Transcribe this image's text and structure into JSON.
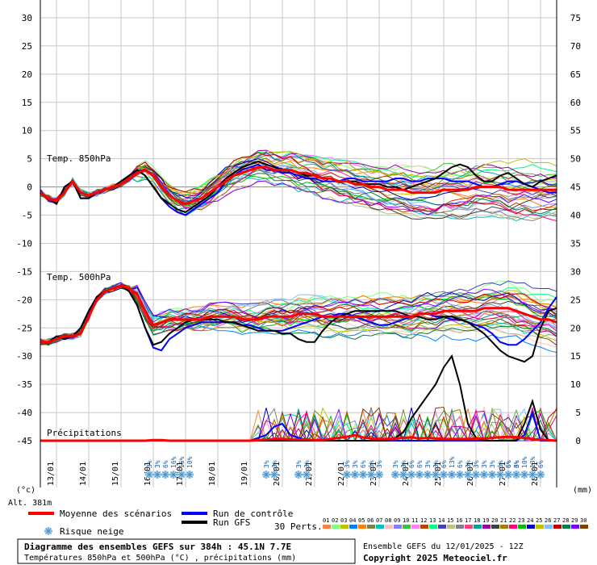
{
  "chart_data": {
    "type": "line",
    "title": "Diagramme des ensembles GEFS sur 384h : 45.1N 7.7E",
    "subtitle": "Températures 850hPa et 500hPa (°C) , précipitations (mm)",
    "y_left_ticks": [
      30,
      25,
      20,
      15,
      10,
      5,
      0,
      -5,
      -10,
      -15,
      -20,
      -25,
      -30,
      -35,
      -40,
      -45
    ],
    "y_right_ticks": [
      75,
      70,
      65,
      60,
      55,
      50,
      45,
      40,
      35,
      30,
      25,
      20,
      15,
      10,
      5,
      0
    ],
    "ylim_left": [
      -45,
      30
    ],
    "ylim_right": [
      0,
      75
    ],
    "xlabel_ticks": [
      "13/01",
      "14/01",
      "15/01",
      "16/01",
      "17/01",
      "18/01",
      "19/01",
      "20/01",
      "21/01",
      "22/01",
      "23/01",
      "24/01",
      "25/01",
      "26/01",
      "27/01",
      "28/01"
    ],
    "unit_left": "(°c)",
    "unit_right": "(mm)",
    "altitude_label": "Alt. 381m",
    "section_labels": {
      "t850": "Temp. 850hPa",
      "t500": "Temp. 500hPa",
      "precip": "Précipitations"
    },
    "x_step_hours": 6,
    "x_start": "12/01 12Z",
    "series": [
      {
        "name": "Moyenne des scénarios",
        "color": "#ff0000",
        "t850": [
          -1,
          -2,
          -2.5,
          -1,
          1,
          -1,
          -1.5,
          -1,
          -0.5,
          0,
          0.5,
          1.5,
          2.5,
          3,
          2,
          0,
          -1.5,
          -2.5,
          -3,
          -2.5,
          -2,
          -1,
          0,
          1,
          2,
          2.5,
          3,
          3.5,
          3.5,
          3,
          3,
          3,
          2.5,
          2.5,
          2,
          1.5,
          1.5,
          1,
          1,
          0.5,
          0.5,
          0,
          0,
          -0.5,
          -0.5,
          -0.5,
          -1,
          -1,
          -1,
          -1,
          -0.5,
          -0.5,
          -0.5,
          -0.5,
          0,
          0,
          0,
          0,
          -0.5,
          -0.5,
          -0.5,
          -0.5,
          -0.5,
          -0.5,
          -0.5
        ],
        "t500": [
          -27.5,
          -27.5,
          -27,
          -26.5,
          -26.5,
          -26,
          -23,
          -20,
          -18.5,
          -18,
          -17.5,
          -18,
          -19,
          -22,
          -24.5,
          -24,
          -23.5,
          -23.5,
          -23.5,
          -23.5,
          -23.5,
          -23,
          -23,
          -23,
          -23,
          -23.5,
          -23.5,
          -23.5,
          -23,
          -23,
          -23,
          -23,
          -22.5,
          -22.5,
          -22.5,
          -23,
          -23,
          -23,
          -23,
          -23,
          -23,
          -23,
          -23,
          -23,
          -23,
          -23,
          -23,
          -22.5,
          -22.5,
          -22.5,
          -22,
          -22,
          -22,
          -22,
          -22,
          -21.5,
          -21.5,
          -21.5,
          -21.5,
          -22,
          -22.5,
          -23,
          -23.5,
          -23.5,
          -24
        ],
        "precip": [
          0,
          0,
          0,
          0,
          0,
          0,
          0,
          0,
          0,
          0,
          0,
          0,
          0,
          0,
          0.1,
          0.1,
          0,
          0,
          0,
          0,
          0,
          0,
          0,
          0,
          0,
          0,
          0,
          0.1,
          0.2,
          0.3,
          0.3,
          0.2,
          0.2,
          0.2,
          0.1,
          0.1,
          0.3,
          0.5,
          0.7,
          1,
          0.6,
          0.4,
          0.3,
          0.3,
          0.4,
          0.5,
          0.6,
          0.4,
          0.5,
          0.4,
          0.3,
          0.3,
          0.3,
          0.3,
          0.4,
          0.4,
          0.5,
          0.6,
          0.7,
          0.6,
          0.5,
          0.3,
          0.2,
          0.1,
          0
        ]
      },
      {
        "name": "Run de contrôle",
        "color": "#0000ff",
        "t850": [
          -1,
          -2,
          -3,
          0,
          1,
          -2,
          -2,
          -1,
          -0.5,
          0,
          1,
          2,
          3,
          2,
          0,
          -2,
          -3.5,
          -4.5,
          -5,
          -4,
          -3,
          -2,
          -1,
          1,
          2,
          3,
          3.5,
          4,
          3,
          3,
          2.5,
          2.5,
          2,
          1.5,
          1.5,
          1,
          1,
          1,
          1.5,
          1.5,
          1,
          1,
          1,
          1,
          1.5,
          1.5,
          1,
          1,
          1.5,
          1.5,
          1.5,
          1,
          1,
          1,
          0.5,
          0,
          0,
          0.5,
          1,
          1,
          0.5,
          0,
          -0.5,
          -1,
          -1
        ],
        "t500": [
          -27.5,
          -27.5,
          -26.5,
          -27,
          -26.5,
          -25,
          -22,
          -19.5,
          -18.5,
          -18,
          -17.5,
          -18.5,
          -21,
          -25,
          -28.5,
          -29,
          -27,
          -26,
          -25,
          -24.5,
          -24,
          -24,
          -24,
          -24,
          -24,
          -24.5,
          -24.5,
          -25,
          -25.5,
          -25.5,
          -25.5,
          -25,
          -24.5,
          -24,
          -23.5,
          -23,
          -23,
          -22.5,
          -22.5,
          -23,
          -23.5,
          -24,
          -24.5,
          -24.5,
          -24,
          -23.5,
          -23,
          -22.5,
          -22.5,
          -23,
          -23,
          -23.5,
          -23.5,
          -24,
          -24.5,
          -25,
          -26,
          -27.5,
          -28,
          -28,
          -27,
          -25.5,
          -24,
          -21.5,
          -19.5
        ],
        "precip": [
          0,
          0,
          0,
          0,
          0,
          0,
          0,
          0,
          0,
          0,
          0,
          0,
          0,
          0,
          0,
          0,
          0,
          0,
          0,
          0,
          0,
          0,
          0,
          0,
          0,
          0,
          0,
          0.5,
          1,
          2.5,
          3,
          1,
          0.5,
          0.2,
          0,
          0,
          0,
          0,
          0,
          0,
          0,
          0,
          0,
          0,
          0,
          0,
          0,
          0,
          0,
          0,
          0,
          0,
          0,
          0,
          0,
          0,
          0,
          0,
          0,
          0,
          1,
          5,
          0,
          0,
          0
        ]
      },
      {
        "name": "Run GFS",
        "color": "#000000",
        "t850": [
          -1,
          -2,
          -3,
          0,
          1,
          -2,
          -2,
          -1,
          -0.5,
          0,
          1,
          2,
          3,
          2,
          0,
          -2,
          -3,
          -4,
          -4.5,
          -3.5,
          -2.5,
          -1.5,
          0,
          1.5,
          2.5,
          3.5,
          4,
          4.5,
          4,
          3.5,
          3,
          3,
          2.5,
          2,
          2,
          1.5,
          1.5,
          1,
          1,
          1,
          0.5,
          0.5,
          0.5,
          0,
          0,
          -0.5,
          0,
          0.5,
          1,
          1.5,
          2.5,
          3.5,
          4,
          3.5,
          2,
          1,
          1,
          2,
          2.5,
          1.5,
          0.5,
          0,
          1,
          1.5,
          2
        ],
        "t500": [
          -27.5,
          -27.5,
          -26.5,
          -27,
          -26.5,
          -25,
          -22,
          -19.5,
          -18.5,
          -18,
          -17.5,
          -18.5,
          -21,
          -25,
          -28,
          -27.5,
          -26,
          -25,
          -24,
          -23.5,
          -23.5,
          -23.5,
          -23.5,
          -24,
          -24,
          -24.5,
          -25,
          -25.5,
          -25.5,
          -25.5,
          -26,
          -26,
          -27,
          -27.5,
          -27.5,
          -25.5,
          -24,
          -23,
          -22.5,
          -22,
          -22,
          -22,
          -22,
          -22,
          -22,
          -22.5,
          -23,
          -23,
          -23.5,
          -23.5,
          -23,
          -23,
          -23.5,
          -24,
          -25,
          -26,
          -27.5,
          -29,
          -30,
          -30.5,
          -31,
          -30,
          -25,
          -22,
          -21.5
        ],
        "precip": [
          0,
          0,
          0,
          0,
          0,
          0,
          0,
          0,
          0,
          0,
          0,
          0,
          0,
          0,
          0,
          0,
          0,
          0,
          0,
          0,
          0,
          0,
          0,
          0,
          0,
          0,
          0,
          0,
          0,
          0,
          0,
          0,
          0,
          0,
          0,
          0,
          0,
          0,
          0,
          0,
          0,
          0,
          0,
          0,
          0.5,
          1.5,
          4,
          6,
          8,
          10,
          13,
          15,
          10,
          3,
          0.5,
          0,
          0,
          0,
          0,
          0,
          3,
          7,
          2,
          0,
          0
        ]
      }
    ]
  },
  "legend": {
    "mean": "Moyenne des scénarios",
    "control": "Run de contrôle",
    "gfs": "Run GFS",
    "perts": "30 Perts.",
    "snow": "Risque neige",
    "pert_numbers": [
      "01",
      "02",
      "03",
      "04",
      "05",
      "06",
      "07",
      "08",
      "09",
      "10",
      "11",
      "12",
      "13",
      "14",
      "15",
      "16",
      "17",
      "18",
      "19",
      "20",
      "21",
      "22",
      "23",
      "24",
      "25",
      "26",
      "27",
      "28",
      "29",
      "30"
    ],
    "pert_colors": [
      "#ff8040",
      "#80ff80",
      "#c0c000",
      "#0080ff",
      "#ff8000",
      "#808040",
      "#00c0c0",
      "#ffc0c0",
      "#8080ff",
      "#40c040",
      "#ff80ff",
      "#c04000",
      "#00ff80",
      "#4040c0",
      "#c0c080",
      "#808080",
      "#ff4080",
      "#00a0a0",
      "#a000a0",
      "#404040",
      "#a08000",
      "#ff0080",
      "#00c000",
      "#0000c0",
      "#c0c000",
      "#80c0ff",
      "#c00000",
      "#008040",
      "#8000ff",
      "#804000"
    ]
  },
  "snow_risk": {
    "groups": [
      {
        "labels": [
          "3%",
          "3%",
          "6%",
          "16%",
          "16%",
          "10%"
        ]
      },
      {
        "labels": [
          "3%",
          "3%"
        ]
      },
      {
        "labels": [
          "3%",
          "3%"
        ]
      },
      {
        "labels": [
          "3%",
          "3%",
          "6%",
          "6%",
          "3%"
        ]
      },
      {
        "labels": [
          "3%",
          "3%",
          "6%",
          "6%",
          "3%",
          "3%",
          "6%",
          "13%",
          "6%",
          "3%",
          "3%",
          "3%",
          "3%",
          "6%",
          "6%",
          "3%"
        ]
      },
      {
        "labels": [
          "6%",
          "6%",
          "10%",
          "13%",
          "6%"
        ]
      }
    ]
  },
  "footer": {
    "title": "Diagramme des ensembles GEFS sur 384h : 45.1N 7.7E",
    "subtitle": "Températures 850hPa et 500hPa (°C) , précipitations (mm)",
    "run_info": "Ensemble GEFS du 12/01/2025 - 12Z",
    "copyright": "Copyright 2025 Meteociel.fr"
  }
}
